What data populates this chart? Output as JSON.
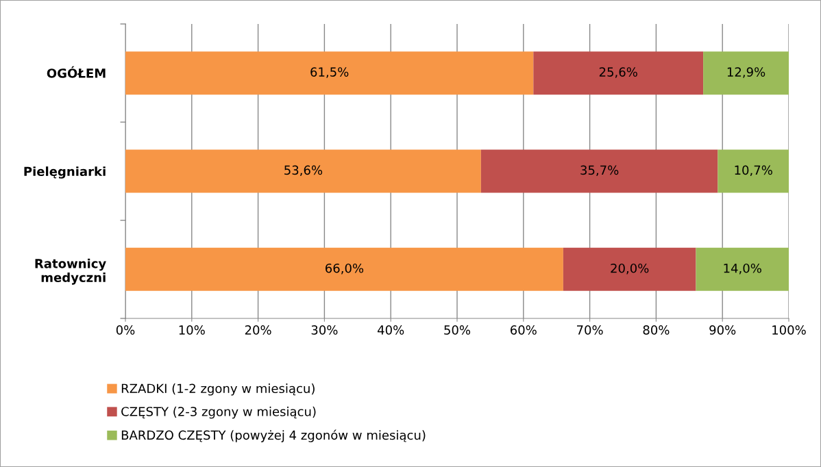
{
  "chart_data": {
    "type": "bar",
    "orientation": "horizontal",
    "stacked": true,
    "categories": [
      "OGÓŁEM",
      "Pielęgniarki",
      "Ratownicy\nmedyczni"
    ],
    "series": [
      {
        "name": "RZADKI (1-2 zgony w miesiącu)",
        "color": "#f79646",
        "values": [
          61.5,
          53.6,
          66.0
        ],
        "value_labels": [
          "61,5%",
          "53,6%",
          "66,0%"
        ]
      },
      {
        "name": "CZĘSTY (2-3 zgony w miesiącu)",
        "color": "#c0504d",
        "values": [
          25.6,
          35.7,
          20.0
        ],
        "value_labels": [
          "25,6%",
          "35,7%",
          "20,0%"
        ]
      },
      {
        "name": "BARDZO CZĘSTY (powyżej 4 zgonów w miesiącu)",
        "color": "#9bbb59",
        "values": [
          12.9,
          10.7,
          14.0
        ],
        "value_labels": [
          "12,9%",
          "10,7%",
          "14,0%"
        ]
      }
    ],
    "xlim": [
      0,
      100
    ],
    "xticks": [
      {
        "value": 0,
        "label": "0%"
      },
      {
        "value": 10,
        "label": "10%"
      },
      {
        "value": 20,
        "label": "20%"
      },
      {
        "value": 30,
        "label": "30%"
      },
      {
        "value": 40,
        "label": "40%"
      },
      {
        "value": 50,
        "label": "50%"
      },
      {
        "value": 60,
        "label": "60%"
      },
      {
        "value": 70,
        "label": "70%"
      },
      {
        "value": 80,
        "label": "80%"
      },
      {
        "value": 90,
        "label": "90%"
      },
      {
        "value": 100,
        "label": "100%"
      }
    ],
    "grid": "x",
    "legend": "bottom"
  }
}
